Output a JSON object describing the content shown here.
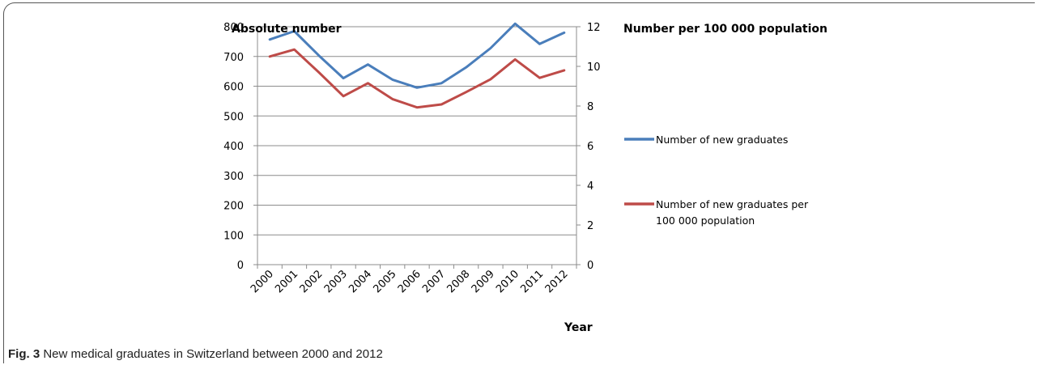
{
  "caption": {
    "label": "Fig. 3",
    "text": "New medical graduates in Switzerland between 2000 and 2012"
  },
  "chart_data": {
    "type": "line",
    "left_axis_title": "Absolute number",
    "right_axis_title": "Number per 100 000 population",
    "xlabel": "Year",
    "categories": [
      "2000",
      "2001",
      "2002",
      "2003",
      "2004",
      "2005",
      "2006",
      "2007",
      "2008",
      "2009",
      "2010",
      "2011",
      "2012"
    ],
    "ylim_left": [
      0,
      800
    ],
    "yticks_left": [
      0,
      100,
      200,
      300,
      400,
      500,
      600,
      700,
      800
    ],
    "ylim_right": [
      0,
      12
    ],
    "yticks_right": [
      0,
      2,
      4,
      6,
      8,
      10,
      12
    ],
    "grid": "horizontal",
    "legend_position": "right",
    "series": [
      {
        "name": "Number of new graduates",
        "axis": "left",
        "color": "#4a7ebb",
        "values": [
          757,
          785,
          703,
          627,
          673,
          622,
          595,
          610,
          663,
          728,
          810,
          742,
          780
        ]
      },
      {
        "name": "Number of new graduates per 100 000 population",
        "name_lines": [
          "Number of new graduates per",
          "100 000 population"
        ],
        "axis": "right",
        "color": "#be4b48",
        "values": [
          10.5,
          10.85,
          9.7,
          8.5,
          9.15,
          8.35,
          7.93,
          8.08,
          8.7,
          9.35,
          10.35,
          9.42,
          9.8
        ]
      }
    ]
  }
}
